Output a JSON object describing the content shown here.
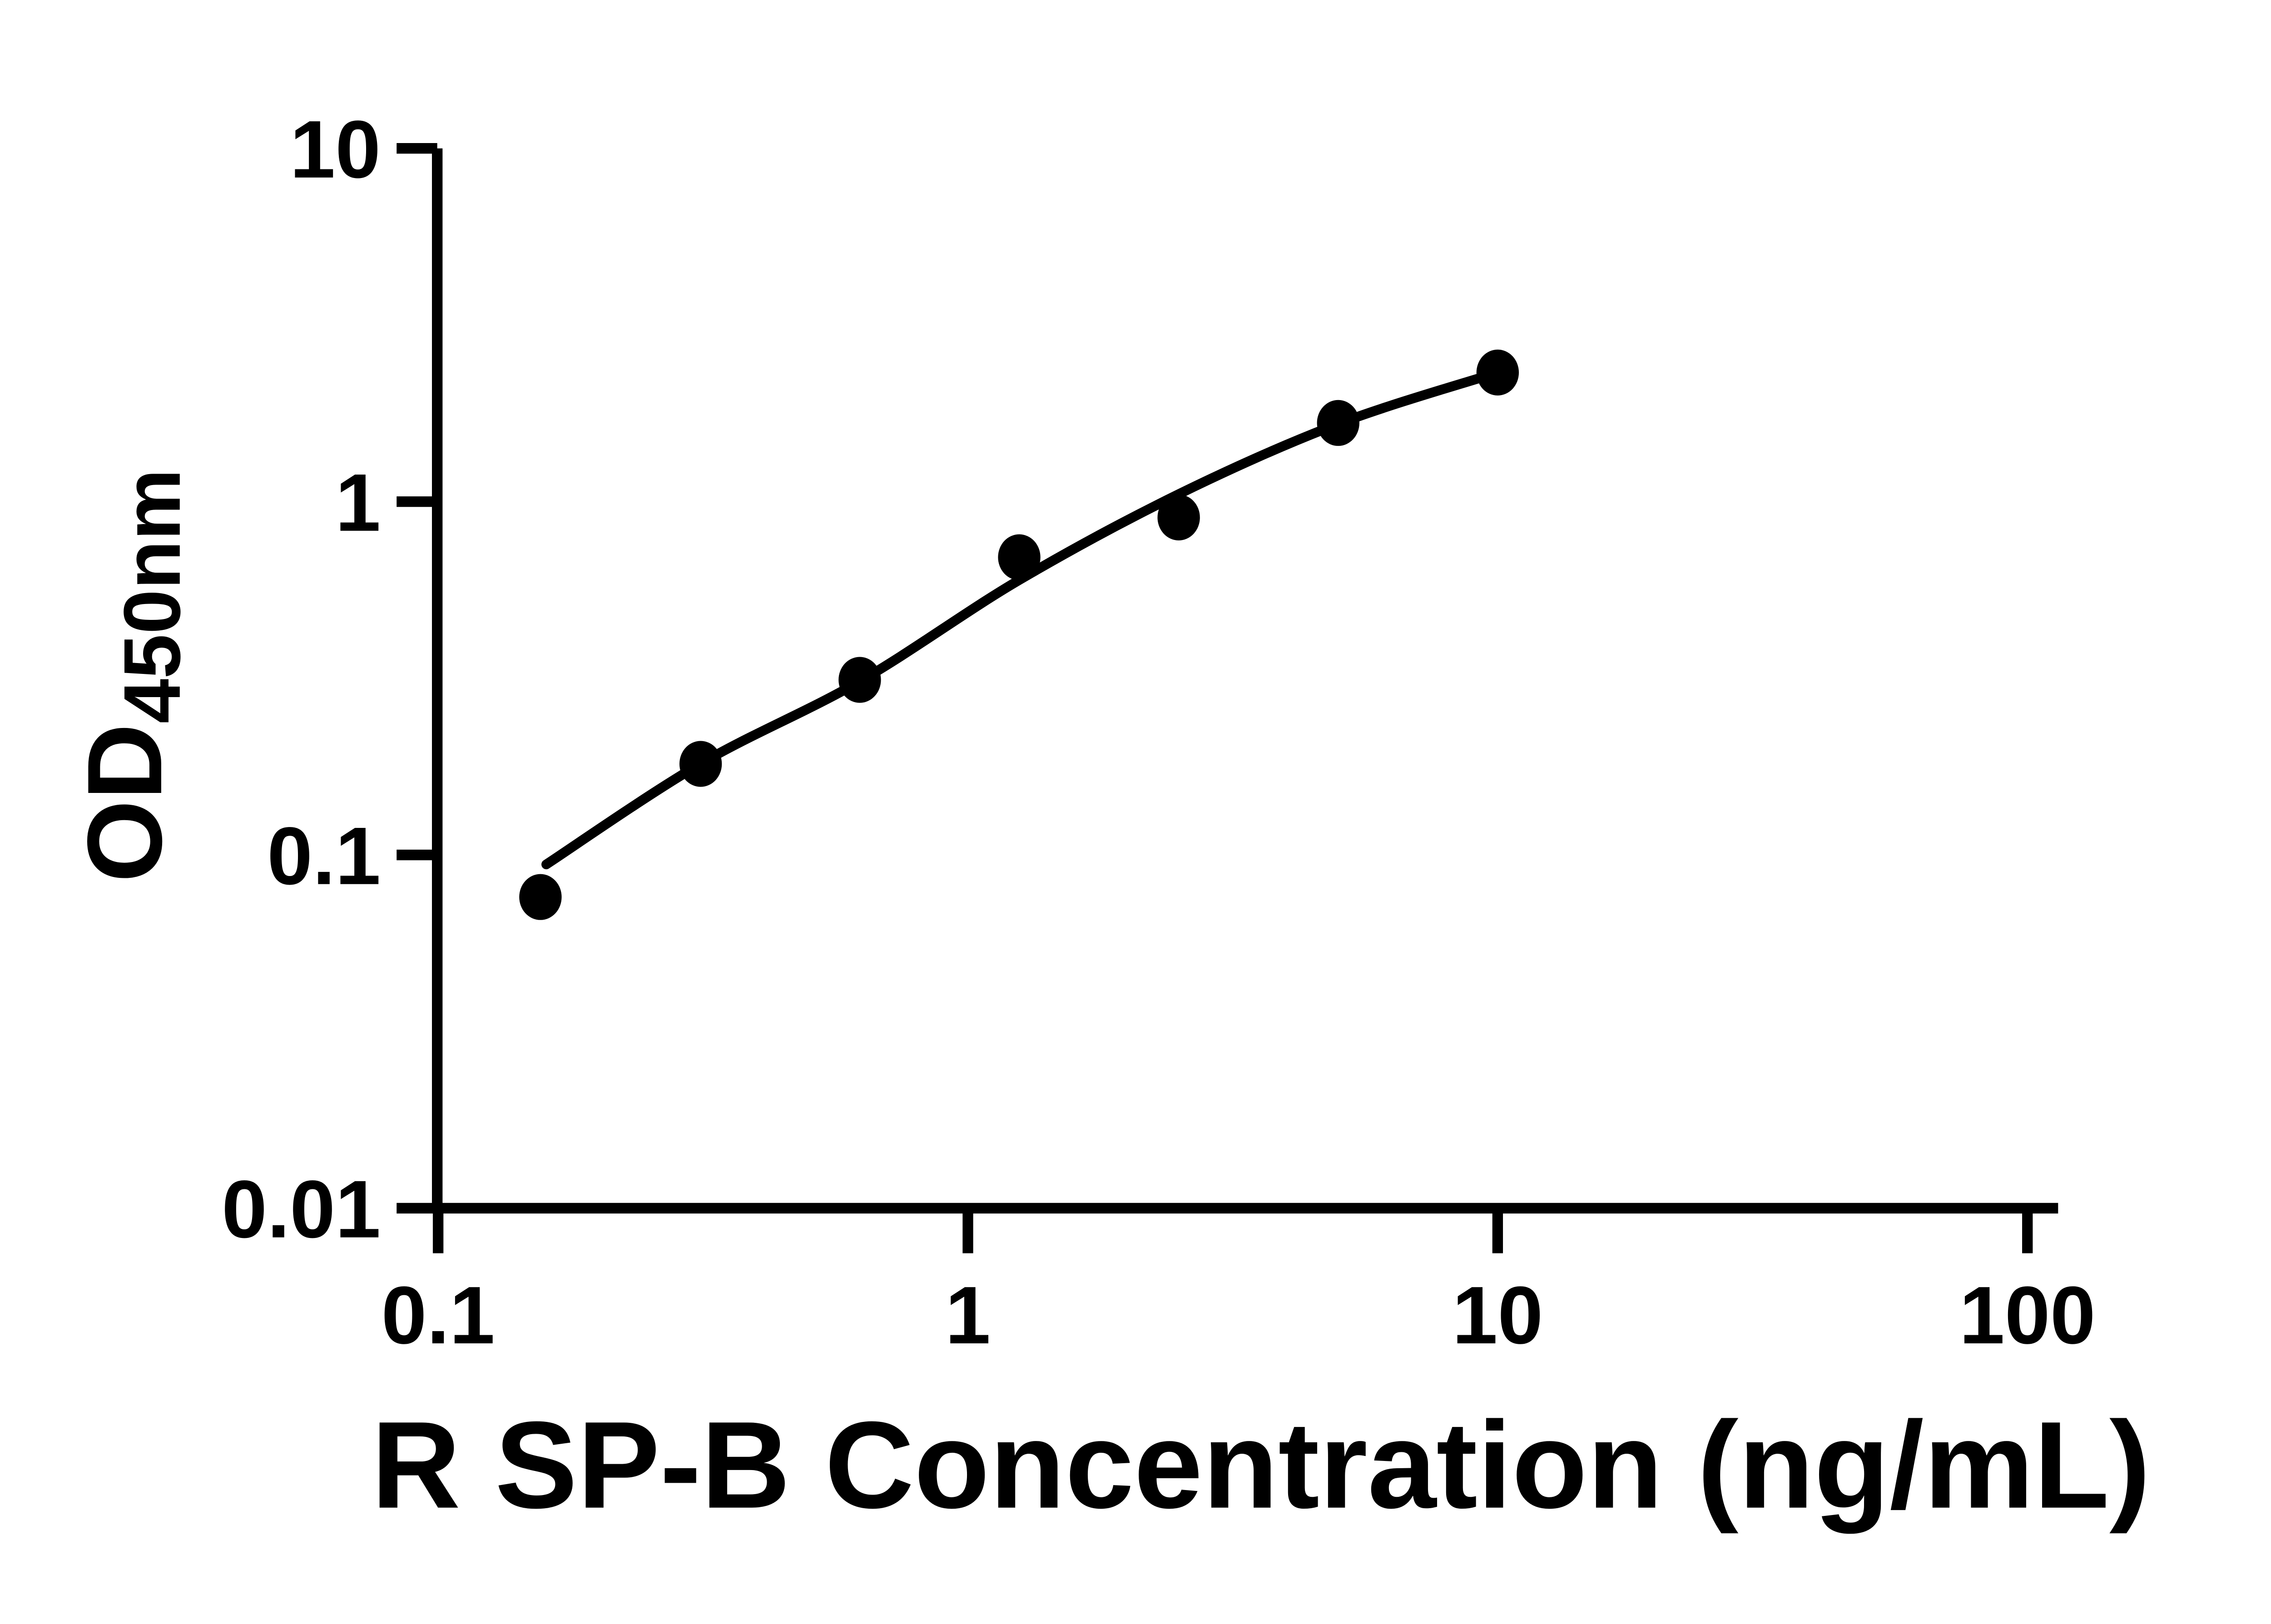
{
  "figure": {
    "background": "#ffffff",
    "ink_color": "#000000"
  },
  "chart_data": {
    "type": "scatter",
    "title": "",
    "xlabel": "R SP-B Concentration (ng/mL)",
    "ylabel_main": "OD",
    "ylabel_sub": "450nm",
    "x_scale": "log",
    "y_scale": "log",
    "xlim": [
      0.1,
      100
    ],
    "ylim": [
      0.01,
      10
    ],
    "grid": false,
    "legend": "none",
    "x_ticks": [
      {
        "value": 0.1,
        "label": "0.1"
      },
      {
        "value": 1,
        "label": "1"
      },
      {
        "value": 10,
        "label": "10"
      },
      {
        "value": 100,
        "label": "100"
      }
    ],
    "y_ticks": [
      {
        "value": 0.01,
        "label": "0.01"
      },
      {
        "value": 0.1,
        "label": "0.1"
      },
      {
        "value": 1,
        "label": "1"
      },
      {
        "value": 10,
        "label": "10"
      }
    ],
    "series": [
      {
        "name": "standard-curve-points",
        "marker": "filled-circle",
        "marker_color": "#000000",
        "x": [
          0.156,
          0.313,
          0.625,
          1.25,
          2.5,
          5,
          10
        ],
        "y": [
          0.076,
          0.181,
          0.313,
          0.696,
          0.902,
          1.67,
          2.32
        ]
      }
    ],
    "fit_curve": {
      "name": "fitted-standard-curve",
      "color": "#000000",
      "points": [
        [
          0.16,
          0.094
        ],
        [
          0.3125,
          0.181
        ],
        [
          0.625,
          0.31
        ],
        [
          1.25,
          0.6
        ],
        [
          2.5,
          1.05
        ],
        [
          5,
          1.66
        ],
        [
          10,
          2.32
        ]
      ]
    }
  }
}
